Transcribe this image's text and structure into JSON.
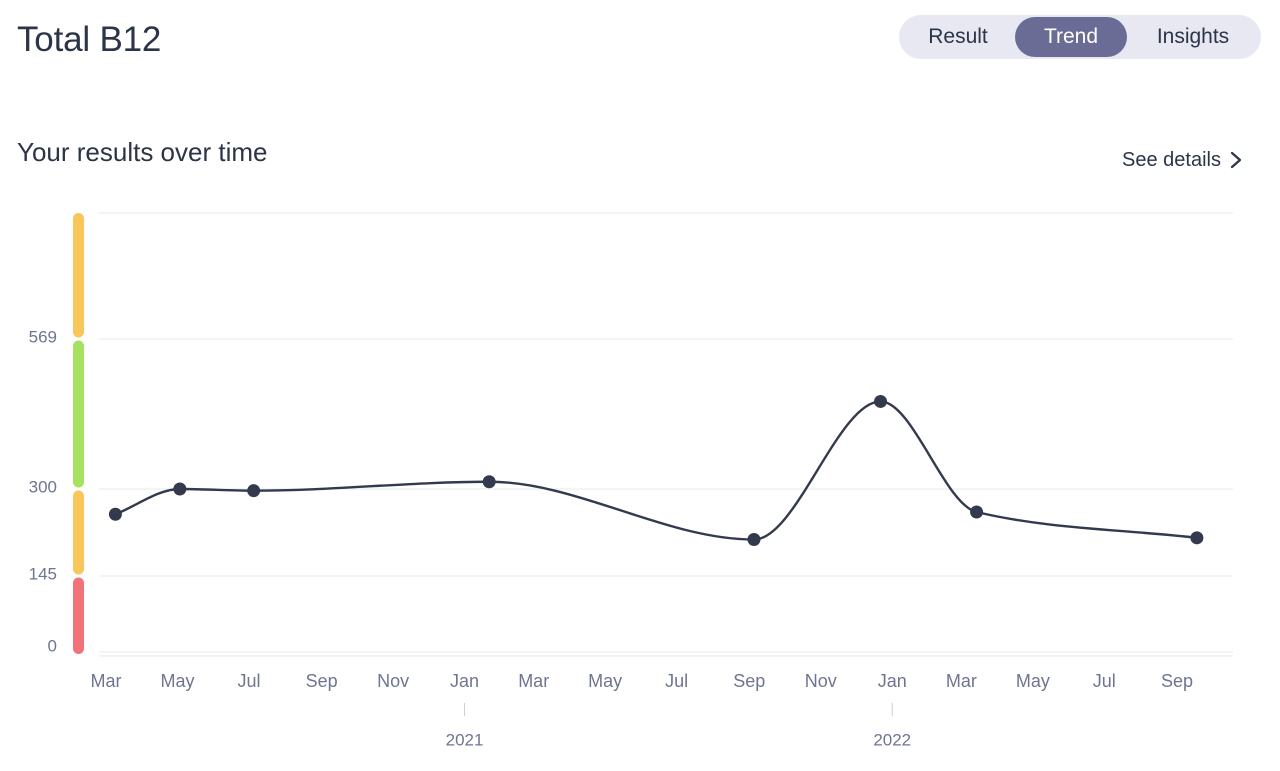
{
  "header": {
    "title": "Total B12",
    "tabs": [
      {
        "label": "Result",
        "active": false
      },
      {
        "label": "Trend",
        "active": true
      },
      {
        "label": "Insights",
        "active": false
      }
    ]
  },
  "section": {
    "title": "Your results over time",
    "see_details_label": "See details"
  },
  "colors": {
    "line": "#333a4d",
    "grid": "#e3eceb",
    "tick_text": "#6e7591",
    "tab_active": "#6b6c95",
    "tab_track": "#e7e8f2",
    "range_high": "#f8c65a",
    "range_normal": "#a6e25f",
    "range_low_borderline": "#f8c65a",
    "range_low": "#f2727a"
  },
  "chart_data": {
    "type": "line",
    "title": "",
    "xlabel": "",
    "ylabel": "",
    "y_ticks": [
      0,
      145,
      300,
      569
    ],
    "x_tick_labels": [
      "Mar",
      "May",
      "Jul",
      "Sep",
      "Nov",
      "Jan",
      "Mar",
      "May",
      "Jul",
      "Sep",
      "Nov",
      "Jan",
      "Mar",
      "May",
      "Jul",
      "Sep"
    ],
    "x_tick_dates": [
      "2020-03-01",
      "2020-05-01",
      "2020-07-01",
      "2020-09-01",
      "2020-11-01",
      "2021-01-01",
      "2021-03-01",
      "2021-05-01",
      "2021-07-01",
      "2021-09-01",
      "2021-11-01",
      "2022-01-01",
      "2022-03-01",
      "2022-05-01",
      "2022-07-01",
      "2022-09-01"
    ],
    "year_labels": [
      {
        "label": "2021",
        "date": "2021-01-01"
      },
      {
        "label": "2022",
        "date": "2022-01-01"
      }
    ],
    "x_range": [
      "2020-02-24",
      "2022-10-12"
    ],
    "range_bands": [
      {
        "from": 0,
        "to": 145,
        "status": "low",
        "color": "#f2727a"
      },
      {
        "from": 145,
        "to": 300,
        "status": "borderline",
        "color": "#f8c65a"
      },
      {
        "from": 300,
        "to": 569,
        "status": "normal",
        "color": "#a6e25f"
      },
      {
        "from": 569,
        "to": 780,
        "status": "high",
        "color": "#f8c65a"
      }
    ],
    "grid": true,
    "legend": "none",
    "series": [
      {
        "x": [
          "2020-03-09",
          "2020-05-03",
          "2020-07-05",
          "2021-01-22",
          "2021-09-05",
          "2021-12-22",
          "2022-03-14",
          "2022-09-18"
        ],
        "y": [
          255,
          300,
          297,
          313,
          210,
          457,
          259,
          213
        ]
      }
    ]
  }
}
